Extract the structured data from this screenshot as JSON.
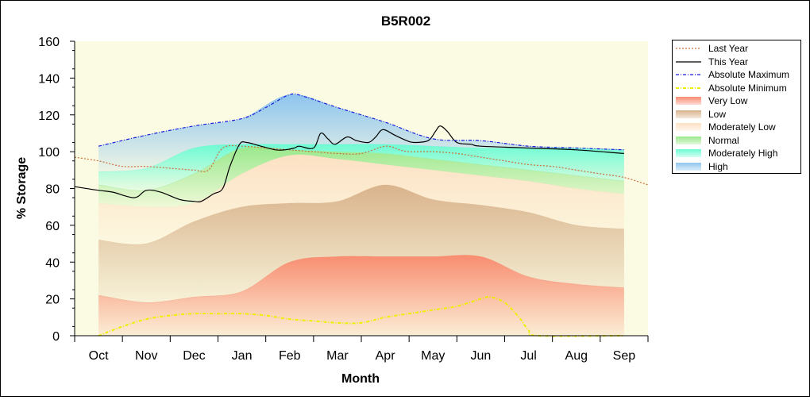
{
  "chart_data": {
    "type": "area",
    "title": "B5R002",
    "xlabel": "Month",
    "ylabel": "% Storage",
    "ylim": [
      0,
      160
    ],
    "yticks": [
      0,
      20,
      40,
      60,
      80,
      100,
      120,
      140,
      160
    ],
    "categories": [
      "Oct",
      "Nov",
      "Dec",
      "Jan",
      "Feb",
      "Mar",
      "Apr",
      "May",
      "Jun",
      "Jul",
      "Aug",
      "Sep"
    ],
    "x_range": [
      -0.5,
      11.5
    ],
    "grid": false,
    "legend_placement": "right",
    "bands": [
      {
        "name": "Very Low",
        "color": "#f88c70",
        "lower": [
          [
            0,
            0
          ],
          [
            11,
            0
          ]
        ],
        "upper": [
          [
            0,
            22
          ],
          [
            1,
            18
          ],
          [
            2,
            21
          ],
          [
            3,
            24
          ],
          [
            4,
            40
          ],
          [
            5,
            43
          ],
          [
            6,
            43
          ],
          [
            7,
            43
          ],
          [
            8,
            43
          ],
          [
            9,
            32
          ],
          [
            10,
            28
          ],
          [
            11,
            26
          ]
        ]
      },
      {
        "name": "Low",
        "color": "#d9b38c",
        "lower": "prev",
        "upper": [
          [
            0,
            52
          ],
          [
            1,
            50
          ],
          [
            2,
            62
          ],
          [
            3,
            70
          ],
          [
            4,
            72
          ],
          [
            5,
            73
          ],
          [
            6,
            82
          ],
          [
            7,
            74
          ],
          [
            8,
            71
          ],
          [
            9,
            67
          ],
          [
            10,
            60
          ],
          [
            11,
            58
          ]
        ]
      },
      {
        "name": "Moderately Low",
        "color": "#fde1c4",
        "lower": "prev",
        "upper": [
          [
            0,
            72
          ],
          [
            1,
            70
          ],
          [
            2,
            72
          ],
          [
            3,
            88
          ],
          [
            4,
            98
          ],
          [
            5,
            96
          ],
          [
            6,
            93
          ],
          [
            7,
            90
          ],
          [
            8,
            87
          ],
          [
            9,
            84
          ],
          [
            10,
            80
          ],
          [
            11,
            77
          ]
        ]
      },
      {
        "name": "Normal",
        "color": "#9ae88c",
        "lower": "prev",
        "upper": [
          [
            0,
            82
          ],
          [
            1,
            79
          ],
          [
            2,
            88
          ],
          [
            3,
            102
          ],
          [
            4,
            101
          ],
          [
            5,
            100
          ],
          [
            6,
            99
          ],
          [
            7,
            96
          ],
          [
            8,
            93
          ],
          [
            9,
            90
          ],
          [
            10,
            87
          ],
          [
            11,
            84
          ]
        ]
      },
      {
        "name": "Moderately High",
        "color": "#6dfbd3",
        "lower": "prev",
        "upper": [
          [
            0,
            89
          ],
          [
            1,
            91
          ],
          [
            2,
            102
          ],
          [
            3,
            104
          ],
          [
            4,
            104
          ],
          [
            5,
            104
          ],
          [
            6,
            104
          ],
          [
            7,
            103
          ],
          [
            8,
            102
          ],
          [
            9,
            102
          ],
          [
            10,
            102
          ],
          [
            11,
            101
          ]
        ]
      },
      {
        "name": "High",
        "color": "#8ec5ee",
        "lower": "prev",
        "upper": [
          [
            0,
            103
          ],
          [
            1,
            109
          ],
          [
            2,
            114
          ],
          [
            3,
            118
          ],
          [
            4,
            131
          ],
          [
            5,
            124
          ],
          [
            6,
            116
          ],
          [
            7,
            107
          ],
          [
            8,
            106
          ],
          [
            9,
            103
          ],
          [
            10,
            102
          ],
          [
            11,
            101
          ]
        ]
      }
    ],
    "series": [
      {
        "name": "Last Year",
        "color": "#c8713c",
        "style": "dotted",
        "points": [
          [
            -0.5,
            97
          ],
          [
            0,
            95
          ],
          [
            0.5,
            92
          ],
          [
            1,
            92
          ],
          [
            1.5,
            91
          ],
          [
            2,
            90
          ],
          [
            2.3,
            90
          ],
          [
            2.6,
            102
          ],
          [
            3,
            103
          ],
          [
            3.5,
            102
          ],
          [
            4,
            101
          ],
          [
            4.5,
            100
          ],
          [
            5,
            99
          ],
          [
            5.5,
            99
          ],
          [
            6,
            103
          ],
          [
            6.3,
            101
          ],
          [
            6.5,
            100
          ],
          [
            7,
            100
          ],
          [
            7.5,
            99
          ],
          [
            8,
            97
          ],
          [
            8.5,
            95
          ],
          [
            9,
            93
          ],
          [
            9.5,
            92
          ],
          [
            10,
            90
          ],
          [
            10.5,
            88
          ],
          [
            11,
            86
          ],
          [
            11.5,
            82
          ]
        ]
      },
      {
        "name": "This Year",
        "color": "#000000",
        "style": "solid",
        "points": [
          [
            -0.5,
            81
          ],
          [
            0,
            79
          ],
          [
            0.3,
            78
          ],
          [
            0.75,
            75
          ],
          [
            1,
            79
          ],
          [
            1.3,
            78
          ],
          [
            1.7,
            74
          ],
          [
            2,
            73
          ],
          [
            2.15,
            73
          ],
          [
            2.4,
            77
          ],
          [
            2.6,
            80
          ],
          [
            2.75,
            92
          ],
          [
            2.95,
            104
          ],
          [
            3.1,
            105
          ],
          [
            3.4,
            103
          ],
          [
            3.7,
            101
          ],
          [
            3.9,
            101
          ],
          [
            4.1,
            102
          ],
          [
            4.2,
            103
          ],
          [
            4.5,
            102
          ],
          [
            4.65,
            110
          ],
          [
            4.8,
            107
          ],
          [
            4.95,
            104
          ],
          [
            5.2,
            108
          ],
          [
            5.4,
            106
          ],
          [
            5.65,
            105
          ],
          [
            5.8,
            108
          ],
          [
            5.95,
            112
          ],
          [
            6.2,
            109
          ],
          [
            6.45,
            106
          ],
          [
            6.6,
            105
          ],
          [
            6.9,
            106
          ],
          [
            7.05,
            111
          ],
          [
            7.15,
            114
          ],
          [
            7.3,
            111
          ],
          [
            7.5,
            105
          ],
          [
            7.8,
            104
          ],
          [
            8,
            103
          ],
          [
            9,
            102
          ],
          [
            10,
            101
          ],
          [
            11,
            99
          ]
        ]
      },
      {
        "name": "Absolute Maximum",
        "color": "#1a1adb",
        "style": "dashdot",
        "points": [
          [
            0,
            103
          ],
          [
            1,
            109
          ],
          [
            2,
            114
          ],
          [
            3,
            118
          ],
          [
            3.5,
            124
          ],
          [
            4,
            131
          ],
          [
            4.3,
            130
          ],
          [
            5,
            124
          ],
          [
            6,
            116
          ],
          [
            7,
            107
          ],
          [
            8,
            106
          ],
          [
            9,
            103
          ],
          [
            10,
            102
          ],
          [
            11,
            101
          ]
        ]
      },
      {
        "name": "Absolute Minimum",
        "color": "#eeee00",
        "style": "dashdot",
        "width": 2,
        "points": [
          [
            0,
            0
          ],
          [
            0.5,
            5
          ],
          [
            1,
            9
          ],
          [
            1.5,
            11
          ],
          [
            2,
            12
          ],
          [
            2.5,
            12
          ],
          [
            3,
            12
          ],
          [
            3.5,
            11
          ],
          [
            4,
            9
          ],
          [
            4.5,
            8
          ],
          [
            5,
            7
          ],
          [
            5.5,
            7
          ],
          [
            6,
            10
          ],
          [
            6.5,
            12
          ],
          [
            7,
            14
          ],
          [
            7.5,
            16
          ],
          [
            8,
            20
          ],
          [
            8.2,
            21
          ],
          [
            8.5,
            18
          ],
          [
            8.8,
            10
          ],
          [
            9,
            3
          ],
          [
            9.2,
            0
          ],
          [
            11,
            0
          ]
        ]
      }
    ],
    "legend": [
      {
        "label": "Last Year",
        "kind": "line",
        "color": "#c8713c",
        "style": "dotted"
      },
      {
        "label": "This Year",
        "kind": "line",
        "color": "#000000",
        "style": "solid"
      },
      {
        "label": "Absolute Maximum",
        "kind": "line",
        "color": "#1a1adb",
        "style": "dashdot"
      },
      {
        "label": "Absolute Minimum",
        "kind": "line",
        "color": "#eeee00",
        "style": "dashdot"
      },
      {
        "label": "Very Low",
        "kind": "area",
        "color": "#f88c70"
      },
      {
        "label": "Low",
        "kind": "area",
        "color": "#d9b38c"
      },
      {
        "label": "Moderately Low",
        "kind": "area",
        "color": "#fde1c4"
      },
      {
        "label": "Normal",
        "kind": "area",
        "color": "#9ae88c"
      },
      {
        "label": "Moderately High",
        "kind": "area",
        "color": "#6dfbd3"
      },
      {
        "label": "High",
        "kind": "area",
        "color": "#8ec5ee"
      }
    ],
    "background_color": "#fbfbe3"
  }
}
